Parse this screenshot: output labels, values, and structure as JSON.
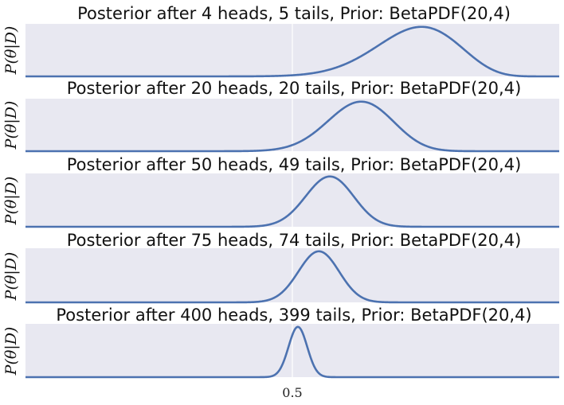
{
  "chart_data": [
    {
      "type": "line",
      "title": "Posterior after 4 heads, 5 tails, Prior: BetaPDF(20,4)",
      "ylabel": "P(θ|D)",
      "heads": 4,
      "tails": 5,
      "prior": [
        20,
        4
      ],
      "series": [
        {
          "x": [
            0.0,
            1.0
          ],
          "curve": "Beta(24, 9) density",
          "peak_x": 0.74
        }
      ]
    },
    {
      "type": "line",
      "title": "Posterior after 20 heads, 20 tails, Prior: BetaPDF(20,4)",
      "ylabel": "P(θ|D)",
      "heads": 20,
      "tails": 20,
      "prior": [
        20,
        4
      ],
      "series": [
        {
          "x": [
            0.0,
            1.0
          ],
          "curve": "Beta(40, 24) density",
          "peak_x": 0.629
        }
      ]
    },
    {
      "type": "line",
      "title": "Posterior after 50 heads, 49 tails, Prior: BetaPDF(20,4)",
      "ylabel": "P(θ|D)",
      "heads": 50,
      "tails": 49,
      "prior": [
        20,
        4
      ],
      "series": [
        {
          "x": [
            0.0,
            1.0
          ],
          "curve": "Beta(70, 53) density",
          "peak_x": 0.57
        }
      ]
    },
    {
      "type": "line",
      "title": "Posterior after 75 heads, 74 tails, Prior: BetaPDF(20,4)",
      "ylabel": "P(θ|D)",
      "heads": 75,
      "tails": 74,
      "prior": [
        20,
        4
      ],
      "series": [
        {
          "x": [
            0.0,
            1.0
          ],
          "curve": "Beta(95, 78) density",
          "peak_x": 0.55
        }
      ]
    },
    {
      "type": "line",
      "title": "Posterior after 400 heads, 399 tails, Prior: BetaPDF(20,4)",
      "ylabel": "P(θ|D)",
      "heads": 400,
      "tails": 399,
      "prior": [
        20,
        4
      ],
      "series": [
        {
          "x": [
            0.0,
            1.0
          ],
          "curve": "Beta(420, 403) density",
          "peak_x": 0.51
        }
      ]
    }
  ],
  "xaxis": {
    "xlim": [
      0,
      1
    ],
    "ticks": [
      0.5
    ],
    "tick_labels": [
      "0.5"
    ],
    "tick_label_panel": 4
  },
  "colors": {
    "panel_bg": "#e8e8f1",
    "line": "#4c72b0",
    "vline": "#ffffff",
    "text": "#111111"
  },
  "grid": true
}
